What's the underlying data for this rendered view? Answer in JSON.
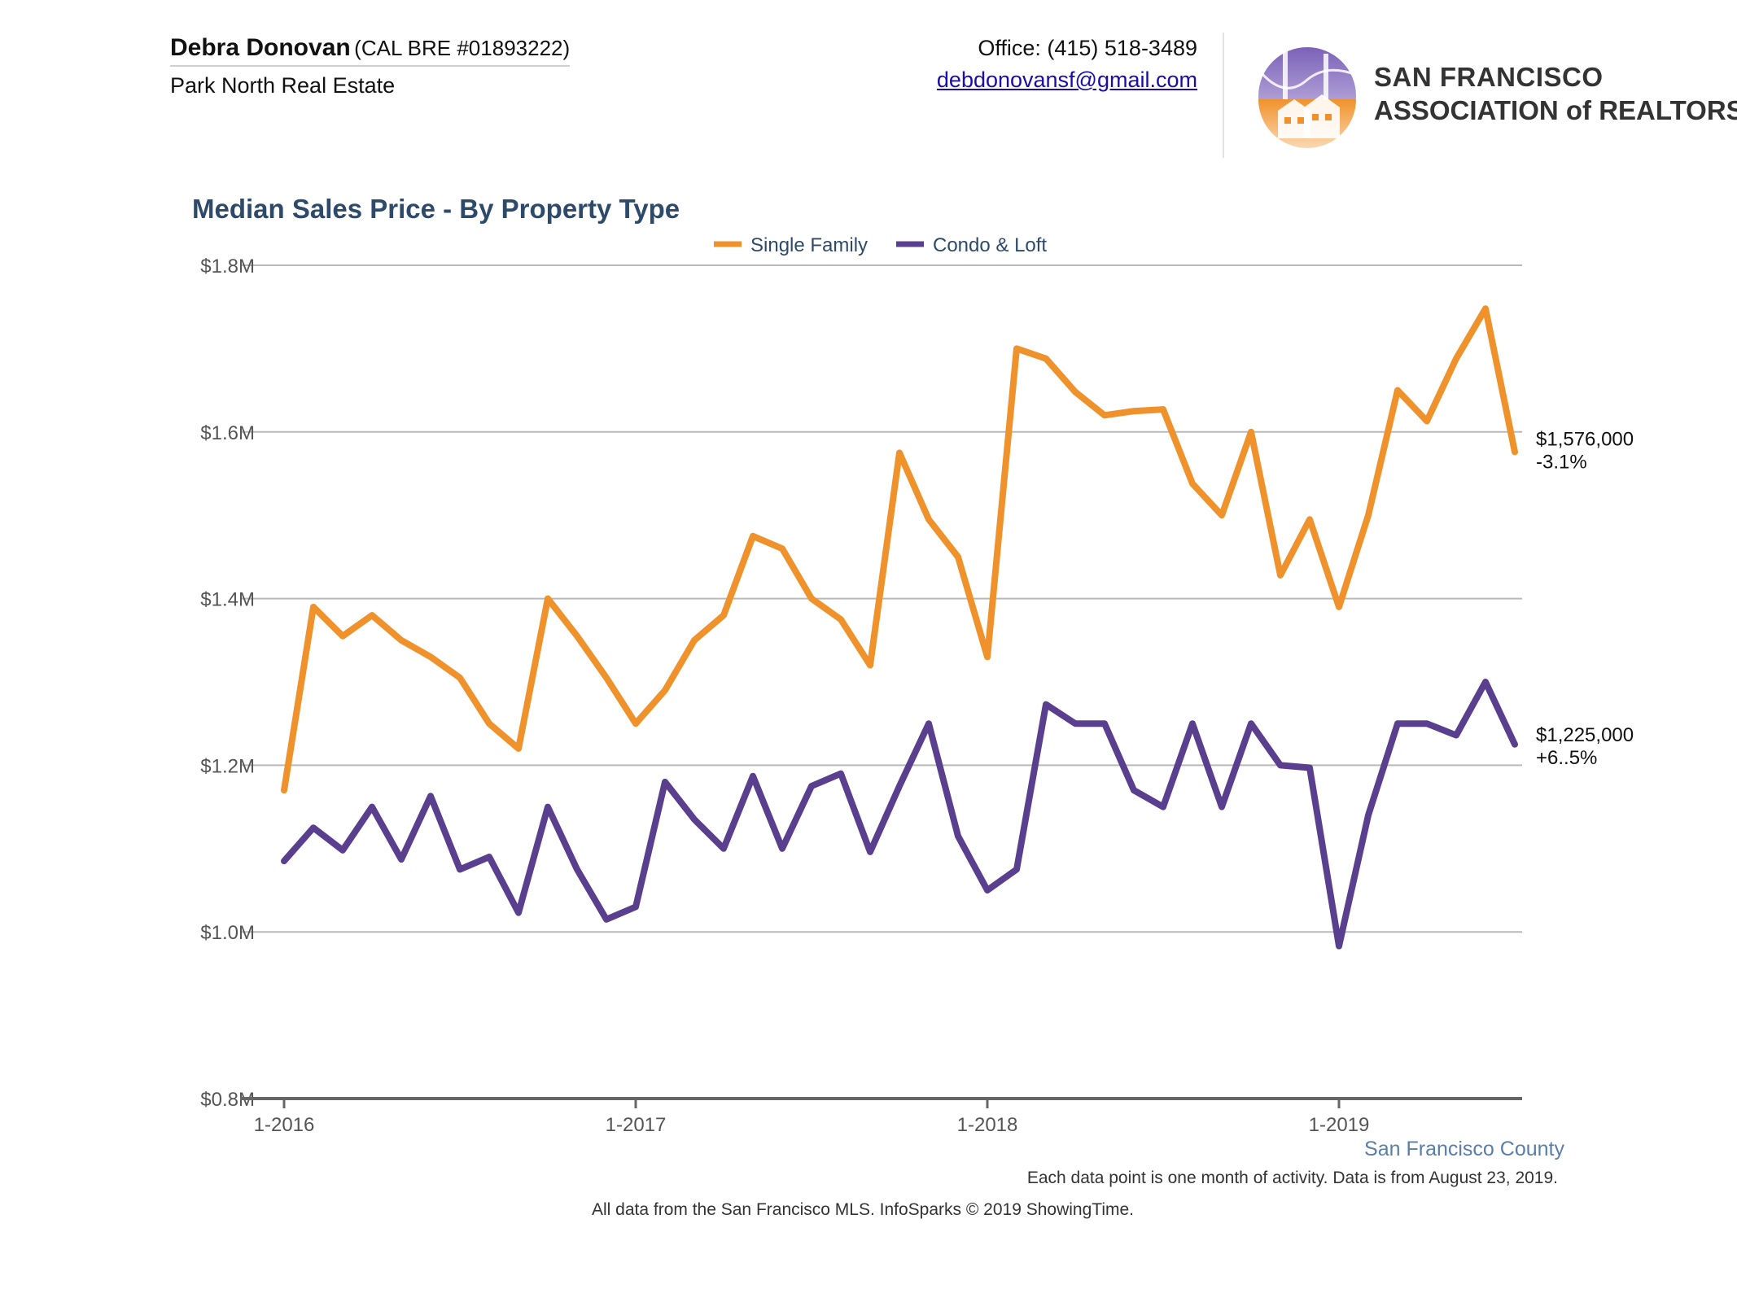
{
  "header": {
    "agent_name": "Debra Donovan",
    "agent_license": "(CAL BRE #01893222)",
    "agent_company": "Park North Real Estate",
    "office_phone": "Office: (415) 518-3489",
    "email": "debdonovansf@gmail.com",
    "logo": {
      "line1": "SAN FRANCISCO",
      "line2": "ASSOCIATION of REALTORS®"
    }
  },
  "chart_title": "Median Sales Price - By Property Type",
  "chart_data": {
    "type": "line",
    "title": "Median Sales Price - By Property Type",
    "xlabel": "",
    "ylabel": "",
    "x_tick_labels": [
      "1-2016",
      "1-2017",
      "1-2018",
      "1-2019"
    ],
    "y_tick_labels": [
      "$0.8M",
      "$1.0M",
      "$1.2M",
      "$1.4M",
      "$1.6M",
      "$1.8M"
    ],
    "ylim": [
      800000,
      1800000
    ],
    "grid": true,
    "legend_position": "top-center",
    "x": [
      "2016-01",
      "2016-02",
      "2016-03",
      "2016-04",
      "2016-05",
      "2016-06",
      "2016-07",
      "2016-08",
      "2016-09",
      "2016-10",
      "2016-11",
      "2016-12",
      "2017-01",
      "2017-02",
      "2017-03",
      "2017-04",
      "2017-05",
      "2017-06",
      "2017-07",
      "2017-08",
      "2017-09",
      "2017-10",
      "2017-11",
      "2017-12",
      "2018-01",
      "2018-02",
      "2018-03",
      "2018-04",
      "2018-05",
      "2018-06",
      "2018-07",
      "2018-08",
      "2018-09",
      "2018-10",
      "2018-11",
      "2018-12",
      "2019-01",
      "2019-02",
      "2019-03",
      "2019-04",
      "2019-05",
      "2019-06",
      "2019-07"
    ],
    "series": [
      {
        "name": "Single Family",
        "color": "#f0922c",
        "values": [
          1170000,
          1390000,
          1355000,
          1380000,
          1350000,
          1330000,
          1305000,
          1250000,
          1220000,
          1400000,
          1355000,
          1305000,
          1250000,
          1290000,
          1350000,
          1380000,
          1475000,
          1460000,
          1400000,
          1375000,
          1320000,
          1575000,
          1495000,
          1450000,
          1330000,
          1700000,
          1688000,
          1648000,
          1620000,
          1625000,
          1627000,
          1538000,
          1500000,
          1600000,
          1428000,
          1495000,
          1390000,
          1500000,
          1650000,
          1613000,
          1688000,
          1748000,
          1576000
        ],
        "end_label": "$1,576,000",
        "end_change": "-3.1%"
      },
      {
        "name": "Condo & Loft",
        "color": "#5b3f8f",
        "values": [
          1085000,
          1125000,
          1098000,
          1150000,
          1087000,
          1163000,
          1075000,
          1090000,
          1023000,
          1150000,
          1075000,
          1015000,
          1030000,
          1180000,
          1135000,
          1100000,
          1187000,
          1100000,
          1175000,
          1190000,
          1096000,
          1175000,
          1250000,
          1115000,
          1050000,
          1075000,
          1273000,
          1250000,
          1250000,
          1170000,
          1150000,
          1250000,
          1150000,
          1250000,
          1200000,
          1197000,
          983000,
          1140000,
          1250000,
          1250000,
          1236000,
          1300000,
          1225000
        ],
        "end_label": "$1,225,000",
        "end_change": "+6..5%"
      }
    ]
  },
  "footer": {
    "county": "San Francisco County",
    "note": "Each data point is one month of activity. Data is from August 23, 2019.",
    "source": "All data from the San Francisco MLS. InfoSparks © 2019 ShowingTime."
  }
}
